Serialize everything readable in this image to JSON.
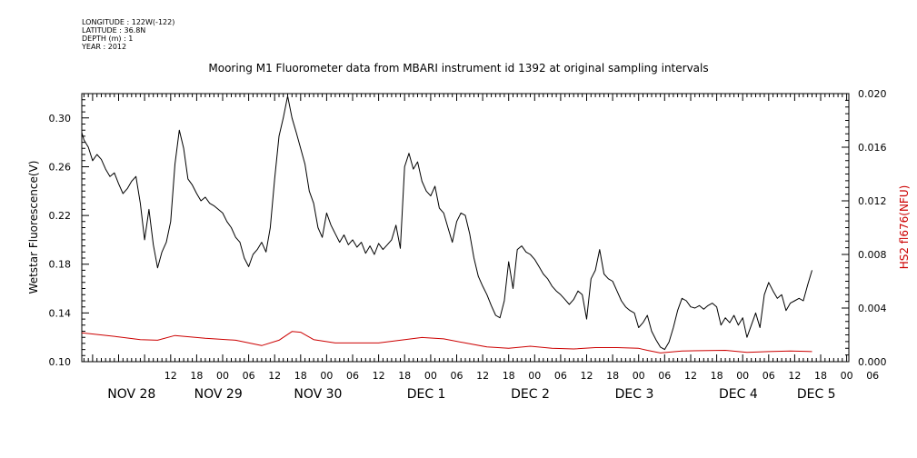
{
  "metadata": [
    "LONGITUDE : 122W(-122)",
    "LATITUDE : 36.8N",
    "DEPTH (m) : 1",
    "YEAR : 2012"
  ],
  "chart_data": {
    "type": "line",
    "title": "Mooring M1 Fluorometer data from MBARI instrument id 1392 at original sampling intervals",
    "ylabel_left": "Wetstar Fluorescence(V)",
    "ylabel_right": "HS2 fl676(NFU)",
    "ylim_left": [
      0.1,
      0.32
    ],
    "ylim_right": [
      0.0,
      0.02
    ],
    "yticks_left": [
      "0.10",
      "0.14",
      "0.18",
      "0.22",
      "0.26",
      "0.30"
    ],
    "yticks_right": [
      "0.000",
      "0.004",
      "0.008",
      "0.012",
      "0.016",
      "0.020"
    ],
    "x_units": "hours since NOV 28 00:00",
    "xlim": [
      -8.5,
      168.5
    ],
    "x_hour_ticks": [
      {
        "t": 12,
        "label": "12"
      },
      {
        "t": 18,
        "label": "18"
      },
      {
        "t": 24,
        "label": "00"
      },
      {
        "t": 30,
        "label": "06"
      },
      {
        "t": 36,
        "label": "12"
      },
      {
        "t": 42,
        "label": "18"
      },
      {
        "t": 48,
        "label": "00"
      },
      {
        "t": 54,
        "label": "06"
      },
      {
        "t": 60,
        "label": "12"
      },
      {
        "t": 66,
        "label": "18"
      },
      {
        "t": 72,
        "label": "00"
      },
      {
        "t": 78,
        "label": "06"
      },
      {
        "t": 84,
        "label": "12"
      },
      {
        "t": 90,
        "label": "18"
      },
      {
        "t": 96,
        "label": "00"
      },
      {
        "t": 102,
        "label": "06"
      },
      {
        "t": 108,
        "label": "12"
      },
      {
        "t": 114,
        "label": "18"
      },
      {
        "t": 120,
        "label": "00"
      },
      {
        "t": 126,
        "label": "06"
      },
      {
        "t": 132,
        "label": "12"
      },
      {
        "t": 138,
        "label": "18"
      },
      {
        "t": 144,
        "label": "00"
      },
      {
        "t": 150,
        "label": "06"
      },
      {
        "t": 156,
        "label": "12"
      },
      {
        "t": 162,
        "label": "18"
      },
      {
        "t": 168,
        "label": "00"
      },
      {
        "t": 174,
        "label": "06"
      }
    ],
    "x_day_labels": [
      {
        "t": 3,
        "label": "NOV 28"
      },
      {
        "t": 23,
        "label": "NOV 29"
      },
      {
        "t": 46,
        "label": "NOV 30"
      },
      {
        "t": 71,
        "label": "DEC  1"
      },
      {
        "t": 95,
        "label": "DEC  2"
      },
      {
        "t": 119,
        "label": "DEC  3"
      },
      {
        "t": 143,
        "label": "DEC  4"
      },
      {
        "t": 161,
        "label": "DEC  5"
      }
    ],
    "series": [
      {
        "axis": "left",
        "color": "#000000",
        "points": [
          [
            -9,
            0.288
          ],
          [
            -8,
            0.282
          ],
          [
            -7,
            0.276
          ],
          [
            -6,
            0.265
          ],
          [
            -5,
            0.27
          ],
          [
            -4,
            0.266
          ],
          [
            -3,
            0.258
          ],
          [
            -2,
            0.252
          ],
          [
            -1,
            0.255
          ],
          [
            0,
            0.246
          ],
          [
            1,
            0.238
          ],
          [
            2,
            0.242
          ],
          [
            3,
            0.248
          ],
          [
            4,
            0.252
          ],
          [
            5,
            0.23
          ],
          [
            6,
            0.2
          ],
          [
            7,
            0.225
          ],
          [
            8,
            0.196
          ],
          [
            9,
            0.177
          ],
          [
            10,
            0.19
          ],
          [
            11,
            0.198
          ],
          [
            12,
            0.215
          ],
          [
            13,
            0.262
          ],
          [
            14,
            0.29
          ],
          [
            15,
            0.275
          ],
          [
            16,
            0.25
          ],
          [
            17,
            0.245
          ],
          [
            18,
            0.238
          ],
          [
            19,
            0.232
          ],
          [
            20,
            0.235
          ],
          [
            21,
            0.23
          ],
          [
            22,
            0.228
          ],
          [
            23,
            0.225
          ],
          [
            24,
            0.222
          ],
          [
            25,
            0.215
          ],
          [
            26,
            0.21
          ],
          [
            27,
            0.202
          ],
          [
            28,
            0.198
          ],
          [
            29,
            0.185
          ],
          [
            30,
            0.178
          ],
          [
            31,
            0.188
          ],
          [
            32,
            0.192
          ],
          [
            33,
            0.198
          ],
          [
            34,
            0.19
          ],
          [
            35,
            0.21
          ],
          [
            36,
            0.25
          ],
          [
            37,
            0.285
          ],
          [
            38,
            0.3
          ],
          [
            39,
            0.318
          ],
          [
            40,
            0.3
          ],
          [
            41,
            0.288
          ],
          [
            42,
            0.275
          ],
          [
            43,
            0.262
          ],
          [
            44,
            0.24
          ],
          [
            45,
            0.23
          ],
          [
            46,
            0.21
          ],
          [
            47,
            0.202
          ],
          [
            48,
            0.222
          ],
          [
            49,
            0.212
          ],
          [
            50,
            0.205
          ],
          [
            51,
            0.198
          ],
          [
            52,
            0.204
          ],
          [
            53,
            0.196
          ],
          [
            54,
            0.2
          ],
          [
            55,
            0.194
          ],
          [
            56,
            0.198
          ],
          [
            57,
            0.189
          ],
          [
            58,
            0.195
          ],
          [
            59,
            0.188
          ],
          [
            60,
            0.197
          ],
          [
            61,
            0.192
          ],
          [
            62,
            0.196
          ],
          [
            63,
            0.2
          ],
          [
            64,
            0.212
          ],
          [
            65,
            0.193
          ],
          [
            66,
            0.26
          ],
          [
            67,
            0.271
          ],
          [
            68,
            0.258
          ],
          [
            69,
            0.264
          ],
          [
            70,
            0.248
          ],
          [
            71,
            0.24
          ],
          [
            72,
            0.236
          ],
          [
            73,
            0.244
          ],
          [
            74,
            0.226
          ],
          [
            75,
            0.222
          ],
          [
            76,
            0.21
          ],
          [
            77,
            0.198
          ],
          [
            78,
            0.215
          ],
          [
            79,
            0.222
          ],
          [
            80,
            0.22
          ],
          [
            81,
            0.205
          ],
          [
            82,
            0.185
          ],
          [
            83,
            0.17
          ],
          [
            84,
            0.162
          ],
          [
            85,
            0.155
          ],
          [
            86,
            0.146
          ],
          [
            87,
            0.138
          ],
          [
            88,
            0.136
          ],
          [
            89,
            0.15
          ],
          [
            90,
            0.182
          ],
          [
            91,
            0.16
          ],
          [
            92,
            0.192
          ],
          [
            93,
            0.195
          ],
          [
            94,
            0.19
          ],
          [
            95,
            0.188
          ],
          [
            96,
            0.184
          ],
          [
            97,
            0.178
          ],
          [
            98,
            0.172
          ],
          [
            99,
            0.168
          ],
          [
            100,
            0.162
          ],
          [
            101,
            0.158
          ],
          [
            102,
            0.155
          ],
          [
            103,
            0.151
          ],
          [
            104,
            0.147
          ],
          [
            105,
            0.151
          ],
          [
            106,
            0.158
          ],
          [
            107,
            0.155
          ],
          [
            108,
            0.135
          ],
          [
            109,
            0.168
          ],
          [
            110,
            0.175
          ],
          [
            111,
            0.192
          ],
          [
            112,
            0.172
          ],
          [
            113,
            0.168
          ],
          [
            114,
            0.166
          ],
          [
            115,
            0.158
          ],
          [
            116,
            0.15
          ],
          [
            117,
            0.145
          ],
          [
            118,
            0.142
          ],
          [
            119,
            0.14
          ],
          [
            120,
            0.128
          ],
          [
            121,
            0.132
          ],
          [
            122,
            0.138
          ],
          [
            123,
            0.125
          ],
          [
            124,
            0.118
          ],
          [
            125,
            0.112
          ],
          [
            126,
            0.11
          ],
          [
            127,
            0.116
          ],
          [
            128,
            0.128
          ],
          [
            129,
            0.142
          ],
          [
            130,
            0.152
          ],
          [
            131,
            0.15
          ],
          [
            132,
            0.145
          ],
          [
            133,
            0.144
          ],
          [
            134,
            0.146
          ],
          [
            135,
            0.143
          ],
          [
            136,
            0.146
          ],
          [
            137,
            0.148
          ],
          [
            138,
            0.145
          ],
          [
            139,
            0.13
          ],
          [
            140,
            0.136
          ],
          [
            141,
            0.132
          ],
          [
            142,
            0.138
          ],
          [
            143,
            0.13
          ],
          [
            144,
            0.136
          ],
          [
            145,
            0.12
          ],
          [
            146,
            0.13
          ],
          [
            147,
            0.14
          ],
          [
            148,
            0.128
          ],
          [
            149,
            0.155
          ],
          [
            150,
            0.165
          ],
          [
            151,
            0.158
          ],
          [
            152,
            0.152
          ],
          [
            153,
            0.155
          ],
          [
            154,
            0.142
          ],
          [
            155,
            0.148
          ],
          [
            156,
            0.15
          ],
          [
            157,
            0.152
          ],
          [
            158,
            0.15
          ],
          [
            159,
            0.163
          ],
          [
            160,
            0.175
          ]
        ]
      },
      {
        "axis": "right",
        "color": "#cc0000",
        "points": [
          [
            -9,
            0.00215
          ],
          [
            0,
            0.00185
          ],
          [
            5,
            0.00165
          ],
          [
            9,
            0.0016
          ],
          [
            13,
            0.00195
          ],
          [
            20,
            0.00175
          ],
          [
            27,
            0.0016
          ],
          [
            33,
            0.0012
          ],
          [
            37,
            0.0016
          ],
          [
            40,
            0.00225
          ],
          [
            42,
            0.0022
          ],
          [
            45,
            0.00165
          ],
          [
            50,
            0.0014
          ],
          [
            60,
            0.0014
          ],
          [
            65,
            0.0016
          ],
          [
            70,
            0.0018
          ],
          [
            75,
            0.0017
          ],
          [
            80,
            0.0014
          ],
          [
            85,
            0.0011
          ],
          [
            90,
            0.001
          ],
          [
            95,
            0.00115
          ],
          [
            100,
            0.001
          ],
          [
            105,
            0.00095
          ],
          [
            110,
            0.00105
          ],
          [
            115,
            0.00105
          ],
          [
            120,
            0.001
          ],
          [
            122,
            0.00085
          ],
          [
            125,
            0.00065
          ],
          [
            130,
            0.0008
          ],
          [
            140,
            0.00085
          ],
          [
            145,
            0.0007
          ],
          [
            150,
            0.00075
          ],
          [
            155,
            0.0008
          ],
          [
            160,
            0.00075
          ]
        ]
      }
    ]
  }
}
